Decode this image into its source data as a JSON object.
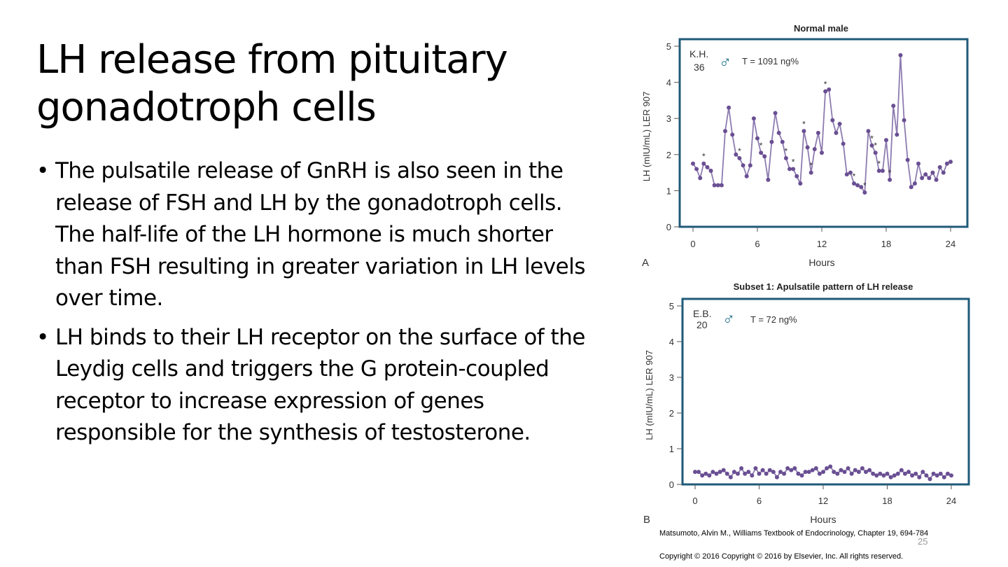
{
  "slide": {
    "title": "LH release from pituitary gonadotroph cells",
    "bullets": [
      "The pulsatile release of GnRH is also seen in the release of FSH and LH by the gonadotroph cells.  The half-life of the LH hormone is much shorter than FSH resulting in greater variation in LH levels over time.",
      "LH binds to their LH receptor on the surface of the Leydig cells and triggers the G protein-coupled receptor to increase expression of genes responsible for the synthesis of testosterone."
    ],
    "bullet_glyph": "•",
    "citation": "Matsumoto, Alvin M., Williams Textbook of Endocrinology, Chapter 19, 694-784",
    "page_number": "25",
    "copyright": "Copyright © 2016 Copyright © 2016 by Elsevier, Inc. All rights reserved."
  },
  "colors": {
    "line": "#8d7bb0",
    "marker": "#6a4f93",
    "frame": "#1f5a78",
    "plot_bg": "#ffffff",
    "male_symbol": "#1f6f8b"
  },
  "chart_data": [
    {
      "type": "line",
      "panel_label": "A",
      "title": "Normal male",
      "xlabel": "Hours",
      "ylabel": "LH (mIU/mL) LER 907",
      "xlim": [
        0,
        24
      ],
      "ylim": [
        0,
        5
      ],
      "xticks": [
        0,
        6,
        12,
        18,
        24
      ],
      "yticks": [
        0,
        1,
        2,
        3,
        4,
        5
      ],
      "grid": false,
      "subject": {
        "id": "K.H.",
        "age": "36",
        "sex_symbol": "♂",
        "testosterone": "T = 1091 ng%"
      },
      "pulse_marker": "*",
      "pulse_indices": [
        3,
        13,
        19,
        26,
        28,
        31,
        33,
        37,
        45,
        48,
        50,
        51,
        52,
        55
      ],
      "series": [
        {
          "x": [
            0,
            0.333,
            0.667,
            1,
            1.333,
            1.667,
            2,
            2.333,
            2.667,
            3,
            3.333,
            3.667,
            4,
            4.333,
            4.667,
            5,
            5.333,
            5.667,
            6,
            6.333,
            6.667,
            7,
            7.333,
            7.667,
            8,
            8.333,
            8.667,
            9,
            9.333,
            9.667,
            10,
            10.333,
            10.667,
            11,
            11.333,
            11.667,
            12,
            12.333,
            12.667,
            13,
            13.333,
            13.667,
            14,
            14.333,
            14.667,
            15,
            15.333,
            15.667,
            16,
            16.333,
            16.667,
            17,
            17.333,
            17.667,
            18,
            18.333,
            18.667,
            19,
            19.333,
            19.667,
            20,
            20.333,
            20.667,
            21,
            21.333,
            21.667,
            22,
            22.333,
            22.667,
            23,
            23.333,
            23.667,
            24
          ],
          "values": [
            1.75,
            1.6,
            1.35,
            1.75,
            1.65,
            1.55,
            1.15,
            1.15,
            1.15,
            2.65,
            3.3,
            2.55,
            2.0,
            1.9,
            1.7,
            1.4,
            1.7,
            3.0,
            2.45,
            2.05,
            1.95,
            1.3,
            2.35,
            3.15,
            2.6,
            2.35,
            1.9,
            1.6,
            1.6,
            1.4,
            1.2,
            2.65,
            2.2,
            1.5,
            2.15,
            2.6,
            2.05,
            3.75,
            3.8,
            2.95,
            2.6,
            2.85,
            2.3,
            1.45,
            1.5,
            1.2,
            1.15,
            1.1,
            0.95,
            2.65,
            2.25,
            2.05,
            1.55,
            1.55,
            2.4,
            1.3,
            3.35,
            2.55,
            4.75,
            2.95,
            1.85,
            1.1,
            1.2,
            1.75,
            1.35,
            1.45,
            1.35,
            1.5,
            1.3,
            1.65,
            1.5,
            1.75,
            1.8
          ]
        }
      ]
    },
    {
      "type": "line",
      "panel_label": "B",
      "title": "Subset 1: Apulsatile pattern of LH release",
      "xlabel": "Hours",
      "ylabel": "LH (mIU/mL) LER 907",
      "xlim": [
        0,
        24
      ],
      "ylim": [
        0,
        5
      ],
      "xticks": [
        0,
        6,
        12,
        18,
        24
      ],
      "yticks": [
        0,
        1,
        2,
        3,
        4,
        5
      ],
      "grid": false,
      "subject": {
        "id": "E.B.",
        "age": "20",
        "sex_symbol": "♂",
        "testosterone": "T = 72 ng%"
      },
      "series": [
        {
          "x": [
            0,
            0.333,
            0.667,
            1,
            1.333,
            1.667,
            2,
            2.333,
            2.667,
            3,
            3.333,
            3.667,
            4,
            4.333,
            4.667,
            5,
            5.333,
            5.667,
            6,
            6.333,
            6.667,
            7,
            7.333,
            7.667,
            8,
            8.333,
            8.667,
            9,
            9.333,
            9.667,
            10,
            10.333,
            10.667,
            11,
            11.333,
            11.667,
            12,
            12.333,
            12.667,
            13,
            13.333,
            13.667,
            14,
            14.333,
            14.667,
            15,
            15.333,
            15.667,
            16,
            16.333,
            16.667,
            17,
            17.333,
            17.667,
            18,
            18.333,
            18.667,
            19,
            19.333,
            19.667,
            20,
            20.333,
            20.667,
            21,
            21.333,
            21.667,
            22,
            22.333,
            22.667,
            23,
            23.333,
            23.667,
            24
          ],
          "values": [
            0.35,
            0.35,
            0.25,
            0.3,
            0.25,
            0.35,
            0.3,
            0.35,
            0.4,
            0.3,
            0.2,
            0.35,
            0.3,
            0.45,
            0.3,
            0.35,
            0.25,
            0.45,
            0.3,
            0.4,
            0.3,
            0.4,
            0.35,
            0.2,
            0.35,
            0.3,
            0.45,
            0.4,
            0.45,
            0.3,
            0.25,
            0.35,
            0.35,
            0.4,
            0.45,
            0.3,
            0.35,
            0.45,
            0.5,
            0.35,
            0.3,
            0.4,
            0.35,
            0.45,
            0.3,
            0.4,
            0.35,
            0.45,
            0.35,
            0.4,
            0.3,
            0.25,
            0.3,
            0.25,
            0.3,
            0.2,
            0.25,
            0.3,
            0.4,
            0.3,
            0.35,
            0.25,
            0.3,
            0.2,
            0.35,
            0.25,
            0.15,
            0.3,
            0.25,
            0.3,
            0.2,
            0.3,
            0.25
          ]
        }
      ]
    }
  ]
}
